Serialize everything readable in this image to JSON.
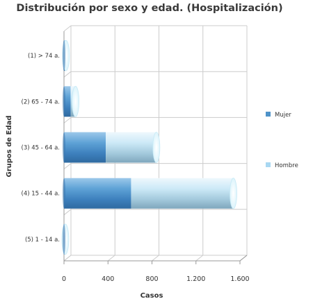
{
  "chart_data": {
    "type": "bar",
    "orientation": "horizontal",
    "stacked": true,
    "title": "Distribución por sexo y edad. (Hospitalización)",
    "xlabel": "Casos",
    "ylabel": "Grupos de Edad",
    "categories": [
      "(1) > 74 a.",
      "(2) 65 - 74 a.",
      "(3) 45 - 64 a.",
      "(4) 15 - 44 a.",
      "(5) 1 - 14 a."
    ],
    "series": [
      {
        "name": "Mujer",
        "values": [
          10,
          60,
          380,
          610,
          5
        ]
      },
      {
        "name": "Hombre",
        "values": [
          8,
          45,
          460,
          930,
          7
        ]
      }
    ],
    "xlim": [
      0,
      1600
    ],
    "xticks": [
      0,
      400,
      800,
      1200,
      1600
    ],
    "xtick_labels": [
      "0",
      "400",
      "800",
      "1.200",
      "1.600"
    ],
    "grid": true,
    "legend_position": "right",
    "colors": {
      "Mujer": "#4f93c9",
      "Hombre": "#a9d8f2",
      "grid": "#cccccc",
      "axis": "#999999"
    }
  }
}
